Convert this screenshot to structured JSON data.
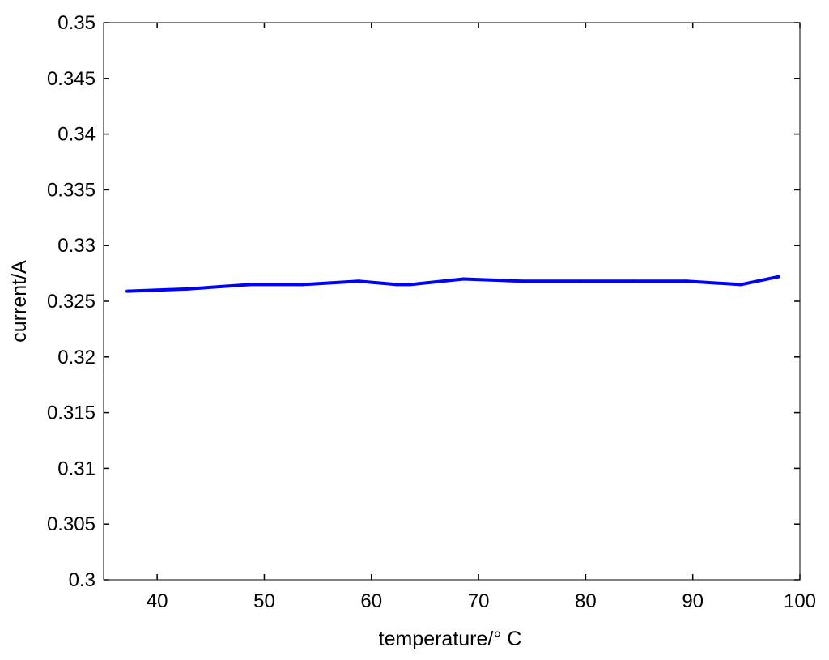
{
  "chart_data": {
    "type": "line",
    "title": "",
    "xlabel": "temperature/° C",
    "ylabel": "current/A",
    "xlim": [
      35,
      100
    ],
    "ylim": [
      0.3,
      0.35
    ],
    "xticks": [
      40,
      50,
      60,
      70,
      80,
      90,
      100
    ],
    "yticks": [
      0.3,
      0.305,
      0.31,
      0.315,
      0.32,
      0.325,
      0.33,
      0.335,
      0.34,
      0.345,
      0.35
    ],
    "xtick_labels": [
      "40",
      "50",
      "60",
      "70",
      "80",
      "90",
      "100"
    ],
    "ytick_labels": [
      "0.3",
      "0.305",
      "0.31",
      "0.315",
      "0.32",
      "0.325",
      "0.33",
      "0.335",
      "0.34",
      "0.345",
      "0.35"
    ],
    "grid": false,
    "series": [
      {
        "color": "#0000ff",
        "x": [
          37.2,
          42.8,
          48.7,
          53.6,
          58.8,
          62.4,
          63.6,
          68.6,
          74.1,
          79.5,
          84.4,
          89.4,
          94.5,
          98.0
        ],
        "y": [
          0.3259,
          0.3261,
          0.3265,
          0.3265,
          0.3268,
          0.3265,
          0.3265,
          0.327,
          0.3268,
          0.3268,
          0.3268,
          0.3268,
          0.3265,
          0.3272
        ]
      }
    ]
  }
}
